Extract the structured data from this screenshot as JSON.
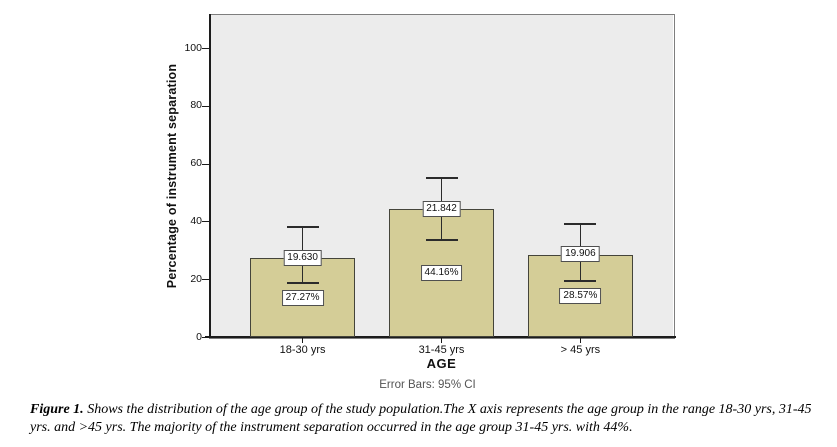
{
  "figure_caption": {
    "label": "Figure 1.",
    "text": " Shows the distribution of the age group of the study population.The X axis represents the age group in the range 18-30 yrs, 31-45 yrs. and >45 yrs. The majority of the instrument separation occurred in the age group 31-45 yrs. with 44%."
  },
  "chart_data": {
    "type": "bar",
    "title": "",
    "categories": [
      "18-30 yrs",
      "31-45 yrs",
      "> 45 yrs"
    ],
    "values": [
      27.27,
      44.16,
      28.57
    ],
    "bar_top_labels": [
      "19.630",
      "21.842",
      "19.906"
    ],
    "bar_inner_labels": [
      "27.27%",
      "44.16%",
      "28.57%"
    ],
    "error_bars": [
      {
        "low": 19.0,
        "high": 38.4
      },
      {
        "low": 33.9,
        "high": 55.4
      },
      {
        "low": 19.7,
        "high": 39.4
      }
    ],
    "xlabel": "AGE",
    "ylabel": "Percentage of instrument separation",
    "yticks": [
      0,
      20,
      40,
      60,
      80,
      100
    ],
    "ylim": [
      0,
      111.5
    ],
    "footnote": "Error Bars: 95% CI",
    "grid": false,
    "legend_position": "none",
    "colors": {
      "plot_bg": "#ececec",
      "plot_border": "#7e7e7e",
      "axis_line": "#1c1c1c",
      "bar_fill": "#d4cd97",
      "bar_border": "#44443a",
      "error_bar": "#2b2b2b",
      "label_box_bg": "#ffffff",
      "label_box_border": "#4f4f4f",
      "footnote_text": "#545454"
    }
  }
}
